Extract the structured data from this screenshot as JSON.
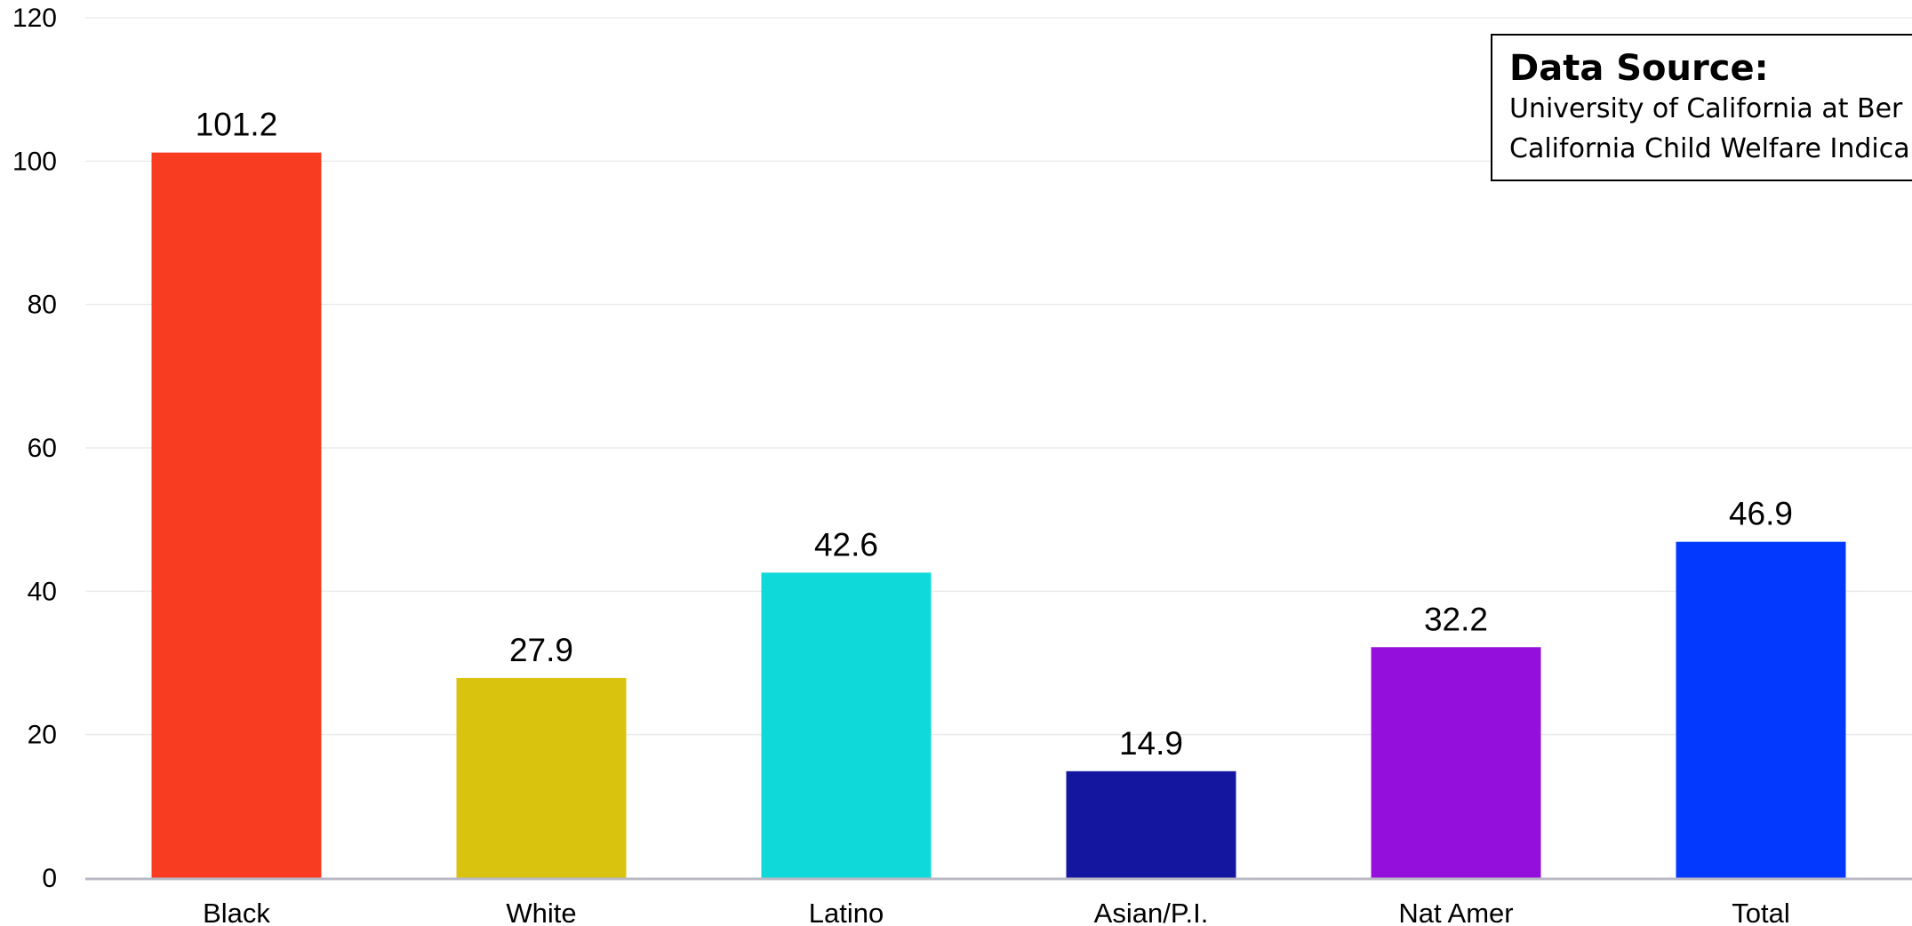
{
  "chart_data": {
    "type": "bar",
    "categories": [
      "Black",
      "White",
      "Latino",
      "Asian/P.I.",
      "Nat Amer",
      "Total"
    ],
    "values": [
      101.2,
      27.9,
      42.6,
      14.9,
      32.2,
      46.9
    ],
    "value_labels": [
      "101.2",
      "27.9",
      "42.6",
      "14.9",
      "32.2",
      "46.9"
    ],
    "colors": [
      "#f73c22",
      "#d9c30f",
      "#0fd9d9",
      "#1416a0",
      "#950fdc",
      "#0339ff"
    ],
    "ylim": [
      0,
      120
    ],
    "yticks": [
      0,
      20,
      40,
      60,
      80,
      100,
      120
    ],
    "grid": true,
    "title": "",
    "xlabel": "",
    "ylabel": ""
  },
  "source_box": {
    "title": "Data Source:",
    "lines": [
      "University of California at Ber",
      "California Child Welfare Indica"
    ]
  }
}
